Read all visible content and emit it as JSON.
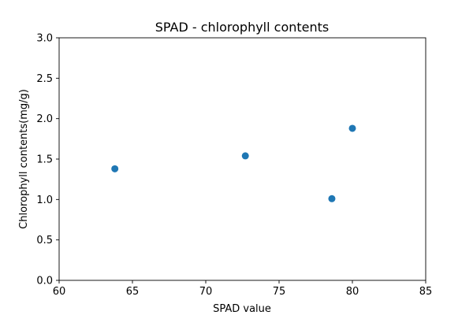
{
  "chart_data": {
    "type": "scatter",
    "title": "SPAD - chlorophyll contents",
    "xlabel": "SPAD value",
    "ylabel": "Chlorophyll contents(mg/g)",
    "xlim": [
      60,
      85
    ],
    "ylim": [
      0,
      3.0
    ],
    "xticks": [
      60,
      65,
      70,
      75,
      80,
      85
    ],
    "xtick_labels": [
      "60",
      "65",
      "70",
      "75",
      "80",
      "85"
    ],
    "yticks": [
      0,
      0.5,
      1.0,
      1.5,
      2.0,
      2.5,
      3.0
    ],
    "ytick_labels": [
      "0.0",
      "0.5",
      "1.0",
      "1.5",
      "2.0",
      "2.5",
      "3.0"
    ],
    "grid": false,
    "series": [
      {
        "color": "#1f77b4",
        "points": [
          {
            "x": 63.8,
            "y": 1.38
          },
          {
            "x": 72.7,
            "y": 1.54
          },
          {
            "x": 78.6,
            "y": 1.01
          },
          {
            "x": 80.0,
            "y": 1.88
          }
        ]
      }
    ]
  }
}
